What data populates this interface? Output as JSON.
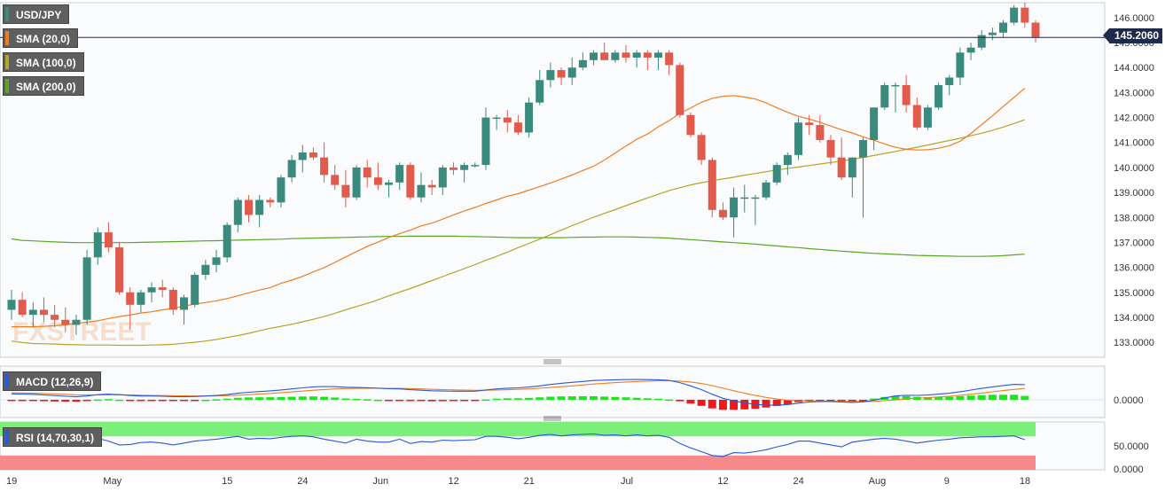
{
  "legend": {
    "symbol": "USD/JPY",
    "sma20": "SMA (20,0)",
    "sma100": "SMA (100,0)",
    "sma200": "SMA (200,0)",
    "macd": "MACD (12,26,9)",
    "rsi": "RSI (14,70,30,1)"
  },
  "current_price": "145.2060",
  "watermark": "FXSTREET",
  "colors": {
    "up": "#3b8a7e",
    "down": "#e05b4b",
    "sma20": "#f07d22",
    "sma100": "#b8a427",
    "sma200": "#5aa624",
    "macd_line": "#2a58d8",
    "signal_line": "#f07d22",
    "hist_pos": "#18e818",
    "hist_neg": "#f01818",
    "rsi_line": "#2a58d8",
    "rsi_over": "#7af07a",
    "rsi_under": "#f68a8a",
    "price_line": "#1e2a4a"
  },
  "chart_data": [
    {
      "type": "candlestick",
      "title": "USD/JPY",
      "ylim": [
        132.4,
        146.6
      ],
      "y_ticks": [
        "133.0000",
        "134.0000",
        "135.0000",
        "136.0000",
        "137.0000",
        "138.0000",
        "139.0000",
        "140.0000",
        "141.0000",
        "142.0000",
        "143.0000",
        "144.0000",
        "145.0000",
        "146.0000"
      ],
      "x_ticks": [
        {
          "i": 0,
          "label": "19"
        },
        {
          "i": 9,
          "label": "May"
        },
        {
          "i": 20,
          "label": "15"
        },
        {
          "i": 27,
          "label": "24"
        },
        {
          "i": 34,
          "label": "Jun"
        },
        {
          "i": 41,
          "label": "12"
        },
        {
          "i": 48,
          "label": "21"
        },
        {
          "i": 57,
          "label": "Jul"
        },
        {
          "i": 66,
          "label": "12"
        },
        {
          "i": 73,
          "label": "24"
        },
        {
          "i": 80,
          "label": "Aug"
        },
        {
          "i": 87,
          "label": "9"
        },
        {
          "i": 94,
          "label": "18"
        }
      ],
      "ohlc": [
        [
          134.3,
          135.1,
          133.9,
          134.7
        ],
        [
          134.7,
          135.0,
          134.0,
          134.1
        ],
        [
          134.1,
          134.6,
          133.6,
          134.3
        ],
        [
          134.3,
          134.8,
          133.8,
          134.1
        ],
        [
          134.1,
          134.5,
          133.6,
          133.9
        ],
        [
          133.9,
          134.4,
          133.4,
          133.7
        ],
        [
          133.7,
          134.1,
          133.3,
          133.9
        ],
        [
          133.9,
          136.7,
          133.7,
          136.4
        ],
        [
          136.4,
          137.6,
          136.1,
          137.4
        ],
        [
          137.4,
          137.8,
          136.6,
          136.8
        ],
        [
          136.8,
          137.0,
          134.9,
          135.0
        ],
        [
          135.0,
          135.2,
          133.5,
          134.5
        ],
        [
          134.5,
          135.1,
          134.2,
          135.0
        ],
        [
          135.0,
          135.4,
          134.6,
          135.2
        ],
        [
          135.2,
          135.5,
          134.8,
          135.1
        ],
        [
          135.1,
          135.2,
          134.1,
          134.3
        ],
        [
          134.3,
          134.9,
          133.7,
          134.8
        ],
        [
          134.5,
          135.8,
          134.4,
          135.7
        ],
        [
          135.7,
          136.3,
          135.5,
          136.1
        ],
        [
          136.1,
          136.7,
          135.8,
          136.4
        ],
        [
          136.4,
          137.8,
          136.2,
          137.7
        ],
        [
          137.7,
          138.8,
          137.4,
          138.7
        ],
        [
          138.7,
          138.9,
          137.8,
          138.1
        ],
        [
          138.1,
          138.9,
          137.6,
          138.7
        ],
        [
          138.7,
          138.8,
          138.4,
          138.6
        ],
        [
          138.6,
          139.7,
          138.4,
          139.6
        ],
        [
          139.6,
          140.5,
          139.4,
          140.3
        ],
        [
          140.3,
          140.9,
          139.8,
          140.6
        ],
        [
          140.6,
          140.8,
          140.3,
          140.4
        ],
        [
          140.4,
          141.0,
          139.4,
          139.7
        ],
        [
          139.7,
          140.1,
          139.1,
          139.3
        ],
        [
          139.3,
          139.9,
          138.4,
          138.8
        ],
        [
          138.8,
          140.1,
          138.7,
          140.0
        ],
        [
          140.0,
          140.3,
          139.2,
          139.6
        ],
        [
          139.6,
          140.2,
          139.1,
          139.3
        ],
        [
          139.3,
          139.5,
          138.8,
          139.4
        ],
        [
          139.4,
          140.2,
          139.1,
          140.1
        ],
        [
          140.1,
          140.2,
          138.7,
          138.8
        ],
        [
          138.8,
          139.8,
          138.6,
          139.3
        ],
        [
          139.3,
          139.5,
          138.9,
          139.2
        ],
        [
          139.2,
          140.1,
          138.9,
          140.0
        ],
        [
          140.0,
          140.2,
          139.7,
          139.9
        ],
        [
          139.9,
          140.2,
          139.4,
          140.1
        ],
        [
          140.1,
          140.2,
          140.0,
          140.1
        ],
        [
          140.1,
          142.4,
          139.9,
          142.0
        ],
        [
          142.0,
          142.1,
          141.5,
          142.0
        ],
        [
          142.0,
          142.3,
          141.4,
          141.8
        ],
        [
          141.8,
          142.1,
          141.3,
          141.4
        ],
        [
          141.4,
          142.8,
          141.2,
          142.6
        ],
        [
          142.6,
          143.9,
          142.5,
          143.5
        ],
        [
          143.5,
          144.2,
          143.2,
          143.9
        ],
        [
          143.9,
          144.0,
          143.3,
          143.6
        ],
        [
          143.6,
          144.4,
          143.3,
          144.0
        ],
        [
          144.0,
          144.6,
          143.9,
          144.3
        ],
        [
          144.3,
          144.7,
          144.1,
          144.6
        ],
        [
          144.6,
          145.0,
          144.3,
          144.3
        ],
        [
          144.3,
          144.7,
          144.2,
          144.6
        ],
        [
          144.6,
          144.9,
          144.2,
          144.4
        ],
        [
          144.4,
          144.7,
          144.0,
          144.6
        ],
        [
          144.6,
          144.7,
          143.9,
          144.4
        ],
        [
          144.4,
          144.7,
          143.9,
          144.6
        ],
        [
          144.6,
          144.7,
          143.7,
          144.1
        ],
        [
          144.1,
          144.2,
          142.0,
          142.1
        ],
        [
          142.1,
          142.2,
          141.2,
          141.3
        ],
        [
          141.3,
          141.4,
          140.1,
          140.3
        ],
        [
          140.3,
          140.4,
          138.0,
          138.3
        ],
        [
          138.3,
          138.6,
          137.9,
          138.0
        ],
        [
          138.0,
          139.2,
          137.2,
          138.8
        ],
        [
          138.8,
          139.3,
          138.2,
          138.8
        ],
        [
          138.8,
          138.9,
          137.7,
          138.8
        ],
        [
          138.8,
          139.5,
          138.7,
          139.4
        ],
        [
          139.4,
          140.2,
          139.3,
          140.1
        ],
        [
          140.1,
          140.6,
          139.7,
          140.5
        ],
        [
          140.5,
          142.0,
          140.3,
          141.8
        ],
        [
          141.8,
          142.1,
          141.3,
          141.7
        ],
        [
          141.7,
          142.1,
          141.0,
          141.1
        ],
        [
          141.1,
          141.3,
          140.1,
          140.4
        ],
        [
          140.4,
          141.2,
          139.5,
          139.6
        ],
        [
          139.6,
          140.4,
          138.8,
          140.4
        ],
        [
          140.4,
          141.2,
          138.0,
          141.1
        ],
        [
          141.1,
          142.4,
          140.7,
          142.4
        ],
        [
          142.4,
          143.4,
          142.3,
          143.3
        ],
        [
          143.3,
          143.4,
          142.2,
          143.3
        ],
        [
          143.3,
          143.7,
          142.2,
          142.5
        ],
        [
          142.5,
          142.8,
          141.5,
          141.6
        ],
        [
          141.6,
          142.5,
          141.5,
          142.4
        ],
        [
          142.4,
          143.4,
          142.3,
          143.3
        ],
        [
          143.3,
          143.7,
          142.9,
          143.6
        ],
        [
          143.6,
          144.8,
          143.3,
          144.6
        ],
        [
          144.6,
          145.0,
          144.3,
          144.8
        ],
        [
          144.8,
          145.5,
          144.7,
          145.3
        ],
        [
          145.3,
          145.6,
          145.1,
          145.4
        ],
        [
          145.4,
          145.9,
          145.2,
          145.8
        ],
        [
          145.8,
          146.5,
          145.7,
          146.4
        ],
        [
          146.4,
          146.6,
          145.6,
          145.8
        ],
        [
          145.8,
          145.9,
          145.0,
          145.2
        ]
      ],
      "sma20": [
        133.62,
        133.62,
        133.62,
        133.64,
        133.66,
        133.7,
        133.75,
        133.81,
        133.86,
        133.95,
        134.03,
        134.09,
        134.17,
        134.22,
        134.3,
        134.36,
        134.45,
        134.53,
        134.59,
        134.66,
        134.75,
        134.86,
        134.98,
        135.09,
        135.19,
        135.36,
        135.49,
        135.64,
        135.82,
        135.99,
        136.2,
        136.42,
        136.63,
        136.84,
        137.01,
        137.2,
        137.35,
        137.49,
        137.66,
        137.77,
        137.93,
        138.1,
        138.26,
        138.4,
        138.56,
        138.7,
        138.85,
        138.95,
        139.09,
        139.23,
        139.38,
        139.54,
        139.7,
        139.88,
        140.05,
        140.3,
        140.58,
        140.86,
        141.13,
        141.34,
        141.63,
        141.87,
        142.17,
        142.38,
        142.61,
        142.77,
        142.85,
        142.88,
        142.82,
        142.74,
        142.59,
        142.39,
        142.21,
        142.05,
        141.94,
        141.81,
        141.66,
        141.51,
        141.38,
        141.23,
        141.09,
        140.94,
        140.81,
        140.73,
        140.7,
        140.71,
        140.77,
        140.87,
        141.05,
        141.36,
        141.72,
        142.07,
        142.44,
        142.81,
        143.17
      ],
      "sma100": [
        133.05,
        132.99,
        132.95,
        132.94,
        132.93,
        132.91,
        132.9,
        132.89,
        132.89,
        132.89,
        132.88,
        132.88,
        132.88,
        132.89,
        132.9,
        132.92,
        132.96,
        133.0,
        133.05,
        133.11,
        133.19,
        133.27,
        133.36,
        133.46,
        133.56,
        133.64,
        133.72,
        133.82,
        133.92,
        134.03,
        134.16,
        134.3,
        134.43,
        134.56,
        134.7,
        134.86,
        135.01,
        135.15,
        135.31,
        135.47,
        135.63,
        135.79,
        135.95,
        136.11,
        136.28,
        136.44,
        136.61,
        136.79,
        136.96,
        137.13,
        137.31,
        137.49,
        137.67,
        137.84,
        138.01,
        138.16,
        138.31,
        138.47,
        138.63,
        138.78,
        138.93,
        139.07,
        139.19,
        139.3,
        139.39,
        139.47,
        139.54,
        139.61,
        139.69,
        139.76,
        139.83,
        139.9,
        139.96,
        140.02,
        140.08,
        140.14,
        140.2,
        140.26,
        140.33,
        140.4,
        140.48,
        140.56,
        140.64,
        140.73,
        140.81,
        140.9,
        140.99,
        141.08,
        141.17,
        141.27,
        141.37,
        141.49,
        141.62,
        141.76,
        141.91
      ],
      "sma200": [
        137.14,
        137.08,
        137.06,
        137.04,
        137.02,
        137.0,
        136.99,
        136.99,
        136.99,
        136.99,
        136.99,
        136.99,
        137.0,
        137.01,
        137.02,
        137.03,
        137.04,
        137.05,
        137.06,
        137.07,
        137.08,
        137.09,
        137.1,
        137.11,
        137.12,
        137.13,
        137.15,
        137.16,
        137.17,
        137.18,
        137.19,
        137.2,
        137.21,
        137.22,
        137.23,
        137.24,
        137.24,
        137.25,
        137.25,
        137.25,
        137.25,
        137.25,
        137.24,
        137.23,
        137.22,
        137.21,
        137.2,
        137.19,
        137.19,
        137.19,
        137.19,
        137.19,
        137.2,
        137.21,
        137.21,
        137.22,
        137.22,
        137.22,
        137.21,
        137.2,
        137.19,
        137.17,
        137.14,
        137.11,
        137.08,
        137.05,
        137.02,
        136.99,
        136.96,
        136.93,
        136.89,
        136.86,
        136.82,
        136.79,
        136.75,
        136.72,
        136.68,
        136.65,
        136.62,
        136.59,
        136.56,
        136.54,
        136.52,
        136.5,
        136.48,
        136.47,
        136.46,
        136.45,
        136.44,
        136.44,
        136.44,
        136.45,
        136.47,
        136.5,
        136.53
      ]
    },
    {
      "type": "macd",
      "title": "MACD (12,26,9)",
      "y_ticks": [
        "0.0000"
      ],
      "ylim": [
        -1.9,
        3.6
      ],
      "macd": [
        0.62,
        0.6,
        0.58,
        0.52,
        0.45,
        0.38,
        0.32,
        0.4,
        0.55,
        0.6,
        0.55,
        0.45,
        0.4,
        0.4,
        0.38,
        0.34,
        0.33,
        0.35,
        0.4,
        0.46,
        0.56,
        0.7,
        0.8,
        0.88,
        0.95,
        1.05,
        1.16,
        1.28,
        1.38,
        1.42,
        1.4,
        1.34,
        1.32,
        1.29,
        1.24,
        1.18,
        1.16,
        1.08,
        1.02,
        0.96,
        0.94,
        0.92,
        0.92,
        0.92,
        1.05,
        1.16,
        1.24,
        1.28,
        1.36,
        1.49,
        1.64,
        1.76,
        1.86,
        1.96,
        2.06,
        2.1,
        2.14,
        2.16,
        2.17,
        2.16,
        2.14,
        2.07,
        1.84,
        1.49,
        1.09,
        0.59,
        0.16,
        -0.12,
        -0.33,
        -0.5,
        -0.58,
        -0.58,
        -0.52,
        -0.36,
        -0.24,
        -0.18,
        -0.18,
        -0.24,
        -0.29,
        -0.22,
        -0.04,
        0.2,
        0.41,
        0.48,
        0.47,
        0.51,
        0.6,
        0.7,
        0.86,
        1.04,
        1.22,
        1.38,
        1.52,
        1.65,
        1.62
      ],
      "signal": [
        0.75,
        0.73,
        0.7,
        0.67,
        0.63,
        0.58,
        0.53,
        0.51,
        0.52,
        0.53,
        0.54,
        0.52,
        0.49,
        0.47,
        0.45,
        0.43,
        0.41,
        0.4,
        0.4,
        0.41,
        0.44,
        0.49,
        0.55,
        0.62,
        0.68,
        0.76,
        0.84,
        0.93,
        1.02,
        1.1,
        1.16,
        1.2,
        1.22,
        1.24,
        1.24,
        1.23,
        1.22,
        1.19,
        1.16,
        1.12,
        1.09,
        1.06,
        1.03,
        1.01,
        1.02,
        1.04,
        1.08,
        1.12,
        1.16,
        1.23,
        1.31,
        1.4,
        1.49,
        1.58,
        1.68,
        1.76,
        1.84,
        1.9,
        1.96,
        2.0,
        2.03,
        2.04,
        2.0,
        1.9,
        1.74,
        1.51,
        1.24,
        0.96,
        0.7,
        0.46,
        0.25,
        0.08,
        -0.04,
        -0.1,
        -0.13,
        -0.14,
        -0.15,
        -0.17,
        -0.19,
        -0.2,
        -0.17,
        -0.1,
        -0.01,
        0.09,
        0.16,
        0.23,
        0.3,
        0.38,
        0.48,
        0.59,
        0.72,
        0.85,
        0.98,
        1.11,
        1.21
      ]
    },
    {
      "type": "rsi",
      "title": "RSI (14,70,30,1)",
      "y_ticks": [
        "50.0000",
        "0.0000"
      ],
      "ylim": [
        0,
        100
      ],
      "overbought": 70,
      "oversold": 30,
      "rsi": [
        58,
        55,
        56,
        54,
        52,
        50,
        52,
        60,
        66,
        60,
        52,
        53,
        57,
        58,
        56,
        52,
        56,
        60,
        62,
        64,
        67,
        70,
        64,
        66,
        65,
        68,
        70,
        71,
        69,
        64,
        60,
        56,
        64,
        60,
        58,
        58,
        64,
        55,
        59,
        58,
        62,
        61,
        62,
        63,
        70,
        70,
        68,
        65,
        68,
        72,
        74,
        71,
        73,
        74,
        75,
        72,
        73,
        71,
        73,
        71,
        72,
        68,
        55,
        46,
        38,
        30,
        28,
        36,
        35,
        38,
        42,
        48,
        53,
        60,
        60,
        56,
        52,
        48,
        58,
        61,
        64,
        66,
        64,
        60,
        56,
        59,
        62,
        64,
        67,
        68,
        69,
        69,
        70,
        71,
        63
      ]
    }
  ]
}
